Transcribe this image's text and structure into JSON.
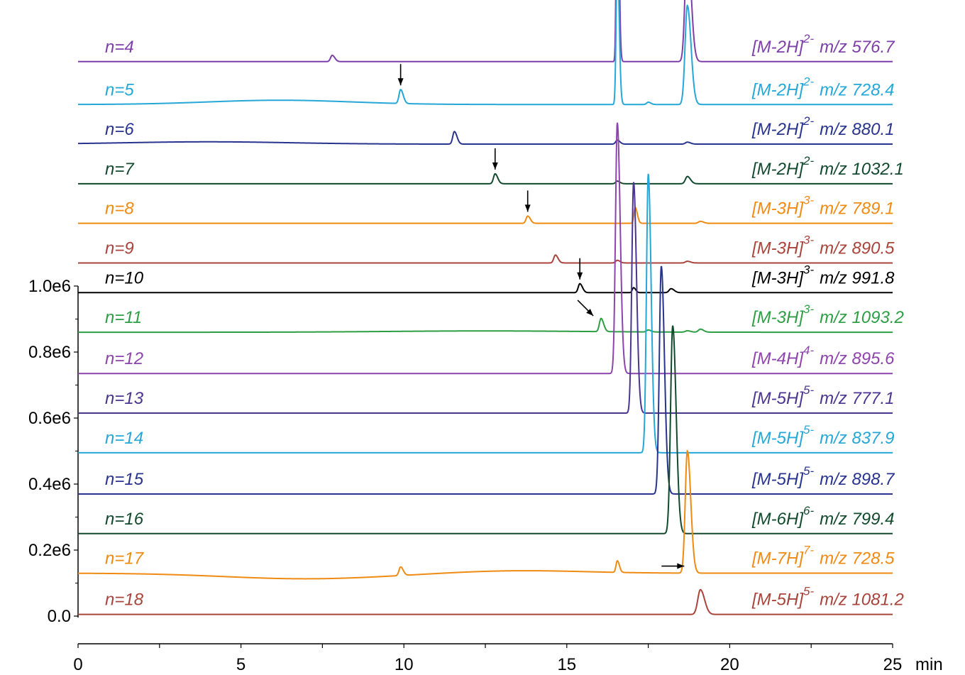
{
  "chart_data": {
    "type": "line",
    "x_axis": {
      "range": [
        0,
        25
      ],
      "ticks": [
        "0",
        "5",
        "10",
        "15",
        "20",
        "25"
      ],
      "unit_label": "min"
    },
    "y_axis": {
      "range": [
        0,
        1000000
      ],
      "ticks": [
        "0.0",
        "0.2e6",
        "0.4e6",
        "0.6e6",
        "0.8e6",
        "1.0e6"
      ]
    },
    "grid": false,
    "series": [
      {
        "name": "n=4",
        "ion": "[M-2H]",
        "charge": "2-",
        "mz": "m/z 576.7",
        "color": "#7e3fa8",
        "baseline": 1680000,
        "peaks": [
          {
            "x": 7.8,
            "h": 19000,
            "w": 0.05
          },
          {
            "x": 16.55,
            "h": 740000,
            "w": 0.03
          },
          {
            "x": 18.7,
            "h": 360000,
            "w": 0.07
          }
        ],
        "humps": [],
        "arrows": []
      },
      {
        "name": "n=5",
        "ion": "[M-2H]",
        "charge": "2-",
        "mz": "m/z 728.4",
        "color": "#25a7d8",
        "baseline": 1550000,
        "peaks": [
          {
            "x": 9.9,
            "h": 42000,
            "w": 0.05
          },
          {
            "x": 16.55,
            "h": 460000,
            "w": 0.035
          },
          {
            "x": 17.5,
            "h": 7000,
            "w": 0.05
          },
          {
            "x": 18.7,
            "h": 300000,
            "w": 0.07
          }
        ],
        "humps": [
          {
            "x": 6.2,
            "h": 13000,
            "w": 2.2
          }
        ],
        "arrows": [
          {
            "x": 9.9,
            "dir": "down"
          }
        ]
      },
      {
        "name": "n=6",
        "ion": "[M-2H]",
        "charge": "2-",
        "mz": "m/z 880.1",
        "color": "#28348e",
        "baseline": 1430000,
        "peaks": [
          {
            "x": 11.55,
            "h": 38000,
            "w": 0.05
          },
          {
            "x": 16.55,
            "h": 12000,
            "w": 0.05
          },
          {
            "x": 18.7,
            "h": 6000,
            "w": 0.06
          }
        ],
        "humps": [
          {
            "x": 4.0,
            "h": 7000,
            "w": 2.5
          }
        ],
        "arrows": []
      },
      {
        "name": "n=7",
        "ion": "[M-2H]",
        "charge": "2-",
        "mz": "m/z 1032.1",
        "color": "#124a2e",
        "baseline": 1310000,
        "peaks": [
          {
            "x": 12.8,
            "h": 30000,
            "w": 0.05
          },
          {
            "x": 16.55,
            "h": 8000,
            "w": 0.05
          },
          {
            "x": 18.7,
            "h": 22000,
            "w": 0.06
          }
        ],
        "humps": [],
        "arrows": [
          {
            "x": 12.8,
            "dir": "down"
          }
        ]
      },
      {
        "name": "n=8",
        "ion": "[M-3H]",
        "charge": "3-",
        "mz": "m/z 789.1",
        "color": "#ef8a12",
        "baseline": 1190000,
        "peaks": [
          {
            "x": 13.8,
            "h": 22000,
            "w": 0.05
          },
          {
            "x": 17.1,
            "h": 48000,
            "w": 0.04
          },
          {
            "x": 19.1,
            "h": 6000,
            "w": 0.06
          }
        ],
        "humps": [],
        "arrows": [
          {
            "x": 13.8,
            "dir": "down"
          }
        ]
      },
      {
        "name": "n=9",
        "ion": "[M-3H]",
        "charge": "3-",
        "mz": "m/z 890.5",
        "color": "#a8443b",
        "baseline": 1070000,
        "peaks": [
          {
            "x": 14.65,
            "h": 24000,
            "w": 0.05
          },
          {
            "x": 16.55,
            "h": 8000,
            "w": 0.05
          },
          {
            "x": 18.7,
            "h": 5000,
            "w": 0.06
          }
        ],
        "humps": [],
        "arrows": []
      },
      {
        "name": "n=10",
        "ion": "[M-3H]",
        "charge": "3-",
        "mz": "m/z 991.8",
        "color": "#000000",
        "baseline": 980000,
        "peaks": [
          {
            "x": 15.4,
            "h": 27000,
            "w": 0.05
          },
          {
            "x": 17.05,
            "h": 15000,
            "w": 0.04
          },
          {
            "x": 18.2,
            "h": 12000,
            "w": 0.06
          }
        ],
        "humps": [],
        "arrows": [
          {
            "x": 15.4,
            "dir": "down"
          }
        ]
      },
      {
        "name": "n=11",
        "ion": "[M-3H]",
        "charge": "3-",
        "mz": "m/z 1093.2",
        "color": "#2e9e45",
        "baseline": 860000,
        "peaks": [
          {
            "x": 16.05,
            "h": 40000,
            "w": 0.05
          },
          {
            "x": 17.5,
            "h": 6000,
            "w": 0.05
          },
          {
            "x": 18.7,
            "h": 4000,
            "w": 0.06
          },
          {
            "x": 19.1,
            "h": 9000,
            "w": 0.06
          }
        ],
        "humps": [
          {
            "x": 12.5,
            "h": 4000,
            "w": 3.0
          }
        ],
        "arrows": [
          {
            "x": 15.9,
            "dir": "diag"
          }
        ]
      },
      {
        "name": "n=12",
        "ion": "[M-4H]",
        "charge": "4-",
        "mz": "m/z 895.6",
        "color": "#8e44ad",
        "baseline": 735000,
        "peaks": [
          {
            "x": 16.55,
            "h": 760000,
            "w": 0.055
          }
        ],
        "humps": [],
        "arrows": []
      },
      {
        "name": "n=13",
        "ion": "[M-5H]",
        "charge": "5-",
        "mz": "m/z 777.1",
        "color": "#4b3590",
        "baseline": 615000,
        "peaks": [
          {
            "x": 17.05,
            "h": 700000,
            "w": 0.055
          }
        ],
        "humps": [],
        "arrows": []
      },
      {
        "name": "n=14",
        "ion": "[M-5H]",
        "charge": "5-",
        "mz": "m/z 837.9",
        "color": "#25a7d8",
        "baseline": 495000,
        "peaks": [
          {
            "x": 17.5,
            "h": 845000,
            "w": 0.055
          }
        ],
        "humps": [],
        "arrows": []
      },
      {
        "name": "n=15",
        "ion": "[M-5H]",
        "charge": "5-",
        "mz": "m/z 898.7",
        "color": "#28348e",
        "baseline": 370000,
        "peaks": [
          {
            "x": 17.9,
            "h": 690000,
            "w": 0.06
          }
        ],
        "humps": [],
        "arrows": []
      },
      {
        "name": "n=16",
        "ion": "[M-6H]",
        "charge": "6-",
        "mz": "m/z 799.4",
        "color": "#124a2e",
        "baseline": 250000,
        "peaks": [
          {
            "x": 18.25,
            "h": 630000,
            "w": 0.065
          }
        ],
        "humps": [],
        "arrows": []
      },
      {
        "name": "n=17",
        "ion": "[M-7H]",
        "charge": "7-",
        "mz": "m/z 728.5",
        "color": "#ef8a12",
        "baseline": 130000,
        "peaks": [
          {
            "x": 9.9,
            "h": 26000,
            "w": 0.05
          },
          {
            "x": 16.55,
            "h": 35000,
            "w": 0.04
          },
          {
            "x": 18.7,
            "h": 370000,
            "w": 0.065
          }
        ],
        "humps": [
          {
            "x": 7.0,
            "h": -17000,
            "w": 2.5
          },
          {
            "x": 13.5,
            "h": 8000,
            "w": 2.0
          }
        ],
        "arrows": [
          {
            "x": 18.3,
            "dir": "right"
          }
        ]
      },
      {
        "name": "n=18",
        "ion": "[M-5H]",
        "charge": "5-",
        "mz": "m/z 1081.2",
        "color": "#a8443b",
        "baseline": 5000,
        "peaks": [
          {
            "x": 19.1,
            "h": 75000,
            "w": 0.08
          }
        ],
        "humps": [],
        "arrows": []
      }
    ]
  }
}
